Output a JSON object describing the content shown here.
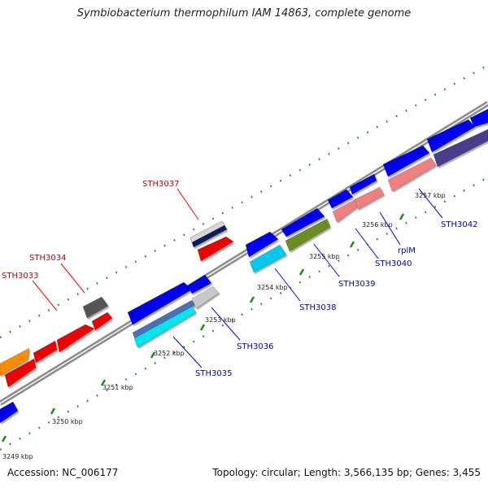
{
  "title": "Symbiobacterium thermophilum IAM 14863, complete genome",
  "footer": {
    "accession": "Accession: NC_006177",
    "stats": "Topology: circular; Length: 3,566,135 bp; Genes: 3,455"
  },
  "colors": {
    "backbone": "#8c8c8c",
    "tick": "#1e8a1e",
    "label_red": "#cc0000",
    "label_blue": "#0000cc",
    "leader_red": "#ff0000",
    "leader_blue": "#0000ff"
  },
  "kbp_labels": [
    {
      "id": "3249",
      "text": "3249 kbp"
    },
    {
      "id": "3250",
      "text": "3250 kbp"
    },
    {
      "id": "3251",
      "text": "3251 kbp"
    },
    {
      "id": "3252",
      "text": "3252 kbp"
    },
    {
      "id": "3253",
      "text": "3253 kbp"
    },
    {
      "id": "3254",
      "text": "3254 kbp"
    },
    {
      "id": "3255",
      "text": "3255 kbp"
    },
    {
      "id": "3256",
      "text": "3256 kbp"
    },
    {
      "id": "3257",
      "text": "3257 kbp"
    }
  ],
  "gene_labels": [
    {
      "id": "sth3033",
      "text": "STH3033",
      "color": "red"
    },
    {
      "id": "sth3034",
      "text": "STH3034",
      "color": "red"
    },
    {
      "id": "sth3037",
      "text": "STH3037",
      "color": "red"
    },
    {
      "id": "sth3035",
      "text": "STH3035",
      "color": "blue"
    },
    {
      "id": "sth3036",
      "text": "STH3036",
      "color": "blue"
    },
    {
      "id": "sth3038",
      "text": "STH3038",
      "color": "blue"
    },
    {
      "id": "sth3039",
      "text": "STH3039",
      "color": "blue"
    },
    {
      "id": "sth3040",
      "text": "STH3040",
      "color": "blue"
    },
    {
      "id": "rplm",
      "text": "rplM",
      "color": "blue"
    },
    {
      "id": "sth3042",
      "text": "STH3042",
      "color": "blue"
    }
  ],
  "genes": [
    {
      "id": "g01",
      "color": "#ff8c00",
      "track": "upper"
    },
    {
      "id": "g02",
      "color": "#ee0000",
      "track": "upper"
    },
    {
      "id": "g03",
      "color": "#ee0000",
      "track": "upper"
    },
    {
      "id": "g04",
      "color": "#ee0000",
      "track": "upper"
    },
    {
      "id": "g05",
      "color": "#ee0000",
      "track": "upper"
    },
    {
      "id": "g06",
      "color": "#555555",
      "track": "upper"
    },
    {
      "id": "g07",
      "color": "#ee0000",
      "track": "upper"
    },
    {
      "id": "g08",
      "color": "#0a1a5c",
      "track": "upper"
    },
    {
      "id": "g09",
      "color": "#d8d8d8",
      "track": "upper"
    },
    {
      "id": "g10",
      "color": "#0000ee",
      "track": "lower"
    },
    {
      "id": "g11",
      "color": "#0000ee",
      "track": "lower"
    },
    {
      "id": "g12",
      "color": "#4a6fb8",
      "track": "lower"
    },
    {
      "id": "g13",
      "color": "#00e5ee",
      "track": "lower"
    },
    {
      "id": "g14",
      "color": "#0000ee",
      "track": "lower"
    },
    {
      "id": "g15",
      "color": "#c8c8c8",
      "track": "lower"
    },
    {
      "id": "g16",
      "color": "#0000ee",
      "track": "lower"
    },
    {
      "id": "g17",
      "color": "#00c8ee",
      "track": "lower"
    },
    {
      "id": "g18",
      "color": "#0000ee",
      "track": "lower"
    },
    {
      "id": "g19",
      "color": "#6b8e23",
      "track": "lower"
    },
    {
      "id": "g20",
      "color": "#0000ee",
      "track": "lower"
    },
    {
      "id": "g21",
      "color": "#f08080",
      "track": "lower"
    },
    {
      "id": "g22",
      "color": "#0000ee",
      "track": "lower"
    },
    {
      "id": "g23",
      "color": "#f08080",
      "track": "lower"
    },
    {
      "id": "g24",
      "color": "#0000ee",
      "track": "lower"
    },
    {
      "id": "g25",
      "color": "#f08080",
      "track": "lower"
    },
    {
      "id": "g26",
      "color": "#0000ee",
      "track": "lower"
    },
    {
      "id": "g27",
      "color": "#483d8b",
      "track": "lower"
    },
    {
      "id": "g28",
      "color": "#0000ee",
      "track": "lower"
    }
  ]
}
